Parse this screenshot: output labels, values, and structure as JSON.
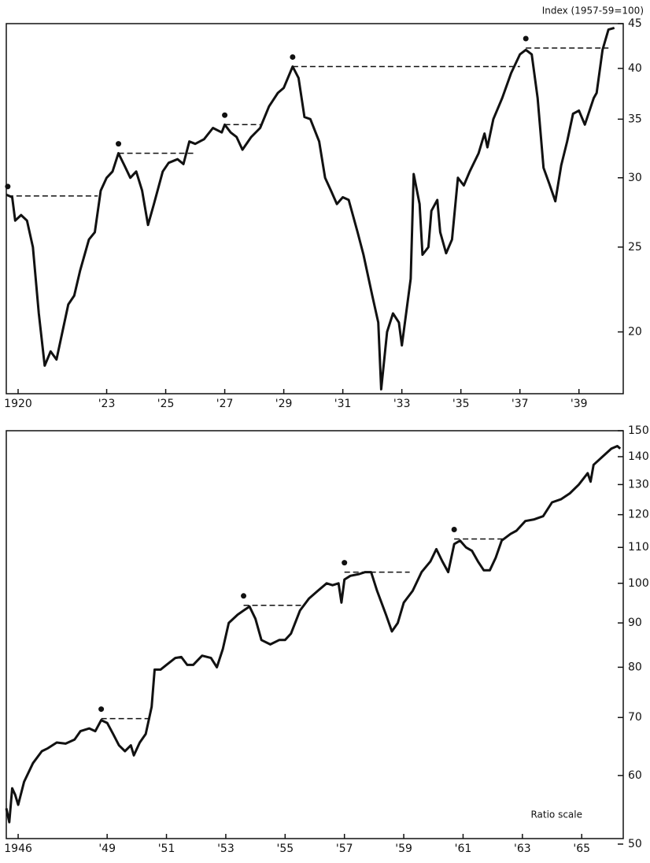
{
  "chart_data": [
    {
      "type": "line",
      "log_scale": true,
      "color": "#111111",
      "ylabel": "Index (1957-59=100)",
      "xlim": [
        1919.6,
        1940.5
      ],
      "ylim": [
        17,
        45
      ],
      "xticks": [
        1920,
        {
          "value": 1923,
          "label": "'23"
        },
        {
          "value": 1925,
          "label": "'25"
        },
        {
          "value": 1927,
          "label": "'27"
        },
        {
          "value": 1929,
          "label": "'29"
        },
        {
          "value": 1931,
          "label": "'31"
        },
        {
          "value": 1933,
          "label": "'33"
        },
        {
          "value": 1935,
          "label": "'35"
        },
        {
          "value": 1937,
          "label": "'37"
        },
        {
          "value": 1939,
          "label": "'39"
        }
      ],
      "yticks": [
        20,
        25,
        30,
        35,
        40,
        45
      ],
      "x": [
        1919.6,
        1919.8,
        1919.9,
        1920.1,
        1920.3,
        1920.5,
        1920.7,
        1920.9,
        1921.1,
        1921.3,
        1921.5,
        1921.7,
        1921.9,
        1922.1,
        1922.4,
        1922.6,
        1922.8,
        1923.0,
        1923.2,
        1923.4,
        1923.6,
        1923.8,
        1924.0,
        1924.2,
        1924.4,
        1924.6,
        1924.9,
        1925.1,
        1925.4,
        1925.6,
        1925.8,
        1926.0,
        1926.3,
        1926.6,
        1926.9,
        1927.0,
        1927.2,
        1927.4,
        1927.6,
        1927.9,
        1928.2,
        1928.5,
        1928.8,
        1929.0,
        1929.3,
        1929.5,
        1929.7,
        1929.9,
        1930.2,
        1930.4,
        1930.6,
        1930.8,
        1931.0,
        1931.2,
        1931.5,
        1931.7,
        1932.0,
        1932.2,
        1932.3,
        1932.5,
        1932.7,
        1932.9,
        1933.0,
        1933.3,
        1933.4,
        1933.6,
        1933.7,
        1933.9,
        1934.0,
        1934.2,
        1934.3,
        1934.5,
        1934.7,
        1934.9,
        1935.1,
        1935.3,
        1935.6,
        1935.8,
        1935.9,
        1936.1,
        1936.4,
        1936.7,
        1937.0,
        1937.2,
        1937.4,
        1937.6,
        1937.8,
        1938.0,
        1938.2,
        1938.4,
        1938.6,
        1938.8,
        1939.0,
        1939.2,
        1939.5,
        1939.6,
        1939.8,
        1940.0,
        1940.2
      ],
      "values": [
        28.7,
        28.5,
        26.8,
        27.2,
        26.8,
        25,
        21,
        18.3,
        19,
        18.6,
        20,
        21.5,
        22,
        23.5,
        25.5,
        26,
        29,
        30,
        30.5,
        32,
        31,
        30,
        30.5,
        29,
        26.5,
        28,
        30.5,
        31.2,
        31.5,
        31.1,
        33,
        32.8,
        33.2,
        34.2,
        33.8,
        34.5,
        33.8,
        33.4,
        32.3,
        33.4,
        34.2,
        36.2,
        37.5,
        38,
        40.2,
        39,
        35.2,
        35,
        33,
        30,
        29,
        28,
        28.5,
        28.3,
        26,
        24.5,
        22,
        20.5,
        17.2,
        20,
        21,
        20.5,
        19.3,
        23,
        30.3,
        28,
        24.5,
        25,
        27.5,
        28.3,
        26,
        24.6,
        25.5,
        30,
        29.4,
        30.5,
        32,
        33.7,
        32.5,
        35,
        37,
        39.5,
        41.5,
        42,
        41.5,
        37,
        30.8,
        29.5,
        28.2,
        31,
        33,
        35.5,
        35.8,
        34.5,
        37,
        37.5,
        42,
        44.3,
        44.5
      ],
      "peaks": [
        {
          "x": 1919.65,
          "value": 28.6,
          "recovery_x": 1922.7
        },
        {
          "x": 1923.4,
          "value": 32,
          "recovery_x": 1926.0
        },
        {
          "x": 1927.0,
          "value": 34.5,
          "recovery_x": 1928.2
        },
        {
          "x": 1929.3,
          "value": 40.2,
          "recovery_x": 1937.0
        },
        {
          "x": 1937.2,
          "value": 42.2,
          "recovery_x": 1940.0
        }
      ]
    },
    {
      "type": "line",
      "log_scale": true,
      "color": "#111111",
      "annotation": "Ratio scale",
      "xlim": [
        1945.6,
        1966.4
      ],
      "ylim": [
        50,
        150
      ],
      "xticks": [
        1946,
        {
          "value": 1949,
          "label": "'49"
        },
        {
          "value": 1951,
          "label": "'51"
        },
        {
          "value": 1953,
          "label": "'53"
        },
        {
          "value": 1955,
          "label": "'55"
        },
        {
          "value": 1957,
          "label": "'57"
        },
        {
          "value": 1959,
          "label": "'59"
        },
        {
          "value": 1961,
          "label": "'61"
        },
        {
          "value": 1963,
          "label": "'63"
        },
        {
          "value": 1965,
          "label": "'65"
        }
      ],
      "yticks": [
        50,
        60,
        70,
        80,
        90,
        100,
        110,
        120,
        130,
        140,
        150
      ],
      "x": [
        1945.6,
        1945.7,
        1945.8,
        1945.9,
        1946.0,
        1946.2,
        1946.5,
        1946.8,
        1947.0,
        1947.3,
        1947.6,
        1947.9,
        1948.1,
        1948.4,
        1948.6,
        1948.8,
        1949.0,
        1949.2,
        1949.4,
        1949.6,
        1949.8,
        1949.9,
        1950.1,
        1950.3,
        1950.5,
        1950.6,
        1950.8,
        1951.0,
        1951.3,
        1951.5,
        1951.7,
        1951.9,
        1952.2,
        1952.5,
        1952.7,
        1952.9,
        1953.1,
        1953.4,
        1953.6,
        1953.8,
        1954.0,
        1954.2,
        1954.5,
        1954.8,
        1955.0,
        1955.2,
        1955.5,
        1955.8,
        1956.1,
        1956.4,
        1956.6,
        1956.8,
        1956.9,
        1957.0,
        1957.2,
        1957.5,
        1957.7,
        1957.9,
        1958.1,
        1958.4,
        1958.6,
        1958.8,
        1959.0,
        1959.3,
        1959.6,
        1959.9,
        1960.1,
        1960.3,
        1960.5,
        1960.7,
        1960.9,
        1961.1,
        1961.3,
        1961.5,
        1961.7,
        1961.9,
        1962.1,
        1962.3,
        1962.6,
        1962.8,
        1963.1,
        1963.4,
        1963.7,
        1964.0,
        1964.3,
        1964.6,
        1964.9,
        1965.2,
        1965.3,
        1965.4,
        1965.7,
        1966.0,
        1966.2,
        1966.3
      ],
      "values": [
        55,
        53,
        58,
        57,
        55.5,
        59,
        62,
        64,
        64.5,
        65.5,
        65.3,
        66,
        67.5,
        68,
        67.5,
        69.5,
        69,
        67,
        65,
        64,
        65,
        63.3,
        65.5,
        67,
        72,
        79.5,
        79.5,
        80.5,
        82,
        82.2,
        80.5,
        80.5,
        82.5,
        82,
        80,
        84,
        90,
        92,
        93,
        94,
        91,
        86,
        85,
        86,
        86,
        87.5,
        93,
        96,
        98,
        100,
        99.5,
        100,
        95,
        101,
        102,
        102.5,
        103,
        103,
        98,
        92,
        88,
        90,
        95,
        98,
        103,
        106,
        109.5,
        106,
        103,
        111,
        112,
        110,
        109,
        106,
        103.5,
        103.5,
        107,
        112,
        114,
        115,
        118,
        118.5,
        119.5,
        124,
        125,
        127,
        130,
        134,
        131,
        137,
        140,
        143,
        144,
        143
      ],
      "peaks": [
        {
          "x": 1948.8,
          "value": 69.8,
          "recovery_x": 1950.5
        },
        {
          "x": 1953.6,
          "value": 94.3,
          "recovery_x": 1955.6
        },
        {
          "x": 1957.0,
          "value": 103,
          "recovery_x": 1959.2
        },
        {
          "x": 1960.7,
          "value": 112.5,
          "recovery_x": 1962.4
        }
      ]
    }
  ]
}
